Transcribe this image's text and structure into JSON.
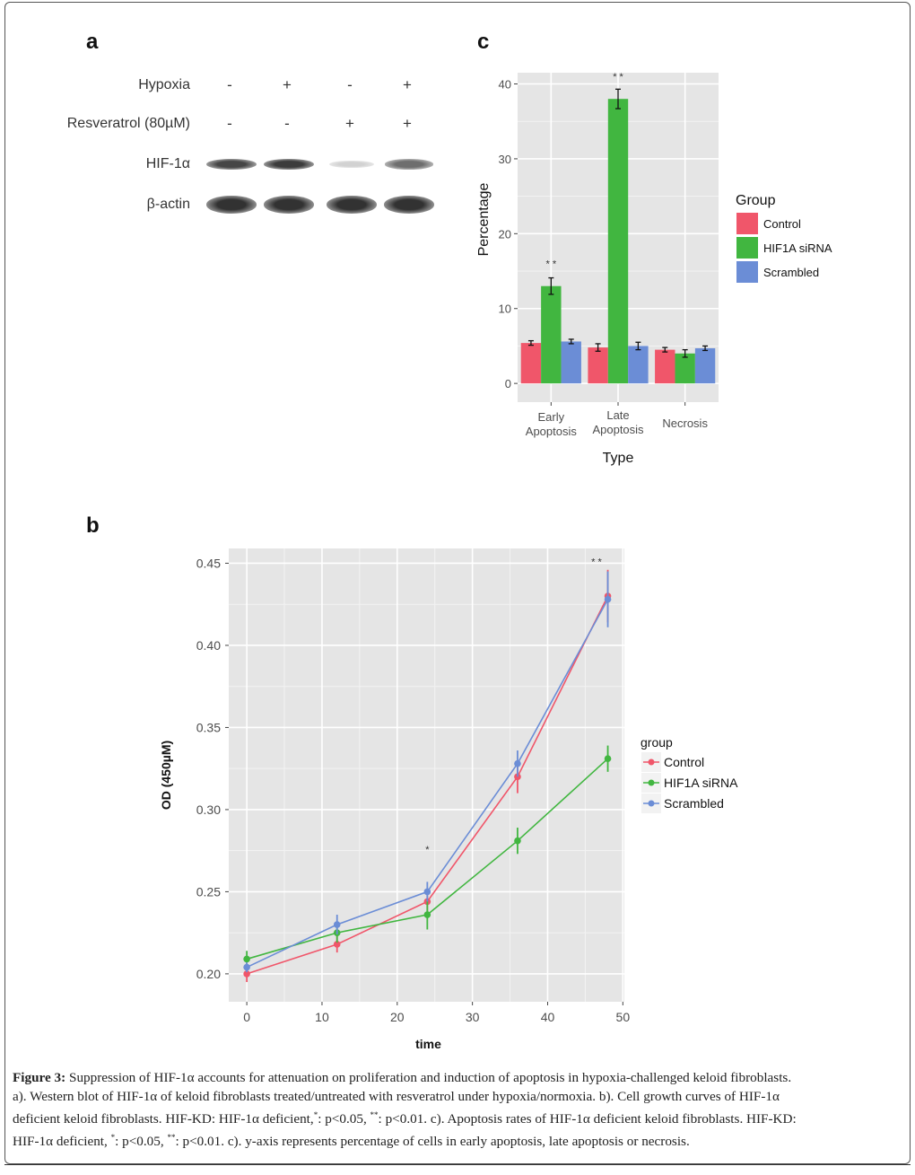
{
  "panels": {
    "a": {
      "letter": "a",
      "rows": [
        {
          "label": "Hypoxia",
          "signs": [
            "-",
            "+",
            "-",
            "+"
          ]
        },
        {
          "label": "Resveratrol (80µM)",
          "signs": [
            "-",
            "-",
            "+",
            "+"
          ]
        }
      ],
      "bands": [
        {
          "label": "HIF-1α",
          "intensity": [
            0.85,
            0.9,
            0.15,
            0.65
          ]
        },
        {
          "label": "β-actin",
          "intensity": [
            0.95,
            0.95,
            0.95,
            0.95
          ]
        }
      ]
    },
    "b": {
      "letter": "b"
    },
    "c": {
      "letter": "c"
    }
  },
  "chart_data": [
    {
      "id": "c",
      "type": "bar",
      "title": "",
      "xlabel": "Type",
      "ylabel": "Percentage",
      "categories": [
        "Early\nApoptosis",
        "Late\nApoptosis",
        "Necrosis"
      ],
      "category_lines": [
        [
          "Early",
          "Apoptosis"
        ],
        [
          "Late",
          "Apoptosis"
        ],
        [
          "Necrosis"
        ]
      ],
      "ylim": [
        -2.5,
        41.5
      ],
      "yticks": [
        0,
        10,
        20,
        30,
        40
      ],
      "grid": true,
      "legend": {
        "title": "Group",
        "position": "right"
      },
      "series": [
        {
          "name": "Control",
          "color": "#F0566A",
          "values": [
            5.4,
            4.8,
            4.5
          ],
          "errors": [
            0.3,
            0.5,
            0.3
          ]
        },
        {
          "name": "HIF1A siRNA",
          "color": "#41B640",
          "values": [
            13.0,
            38.0,
            4.0
          ],
          "errors": [
            1.1,
            1.3,
            0.5
          ]
        },
        {
          "name": "Scrambled",
          "color": "#6B8DD6",
          "values": [
            5.6,
            5.0,
            4.7
          ],
          "errors": [
            0.3,
            0.5,
            0.3
          ]
        }
      ],
      "annotations": [
        {
          "category": 0,
          "text": "* *",
          "y": 16.0
        },
        {
          "category": 1,
          "text": "* *",
          "y": 41.0
        }
      ]
    },
    {
      "id": "b",
      "type": "line",
      "title": "",
      "xlabel": "time",
      "ylabel": "OD (450µM)",
      "xlim": [
        -2.4,
        50.2
      ],
      "ylim": [
        0.183,
        0.459
      ],
      "xticks": [
        0,
        10,
        20,
        30,
        40,
        50
      ],
      "yticks": [
        0.2,
        0.25,
        0.3,
        0.35,
        0.4,
        0.45
      ],
      "ytick_labels": [
        "0.20",
        "0.25",
        "0.30",
        "0.35",
        "0.40",
        "0.45"
      ],
      "grid": true,
      "legend": {
        "title": "group",
        "position": "right"
      },
      "x": [
        0,
        12,
        24,
        36,
        48
      ],
      "series": [
        {
          "name": "Control",
          "color": "#F0566A",
          "values": [
            0.2,
            0.218,
            0.244,
            0.32,
            0.43
          ],
          "errors": [
            0.005,
            0.005,
            0.006,
            0.01,
            0.016
          ]
        },
        {
          "name": "HIF1A siRNA",
          "color": "#41B640",
          "values": [
            0.209,
            0.225,
            0.236,
            0.281,
            0.331
          ],
          "errors": [
            0.005,
            0.006,
            0.009,
            0.008,
            0.008
          ]
        },
        {
          "name": "Scrambled",
          "color": "#6B8DD6",
          "values": [
            0.204,
            0.23,
            0.25,
            0.328,
            0.428
          ],
          "errors": [
            0.003,
            0.006,
            0.006,
            0.008,
            0.017
          ]
        }
      ],
      "annotations": [
        {
          "x": 24,
          "y": 0.276,
          "text": "*"
        },
        {
          "x": 46.5,
          "y": 0.451,
          "text": "* *"
        }
      ]
    }
  ],
  "caption": {
    "label": "Figure 3:",
    "lines": [
      " Suppression of HIF-1α accounts for attenuation on proliferation and induction of apoptosis in hypoxia-challenged keloid fibroblasts.",
      "a). Western blot of HIF-1α of keloid fibroblasts treated/untreated with resveratrol under hypoxia/normoxia. b). Cell growth curves of HIF-1α",
      "deficient keloid fibroblasts. HIF-KD: HIF-1α deficient,|*|: p<0.05, |**|: p<0.01. c). Apoptosis rates of HIF-1α deficient keloid fibroblasts. HIF-KD:",
      "HIF-1α deficient, |*|: p<0.05, |**|: p<0.01. c). y-axis represents percentage of cells in early apoptosis, late apoptosis or necrosis."
    ]
  }
}
